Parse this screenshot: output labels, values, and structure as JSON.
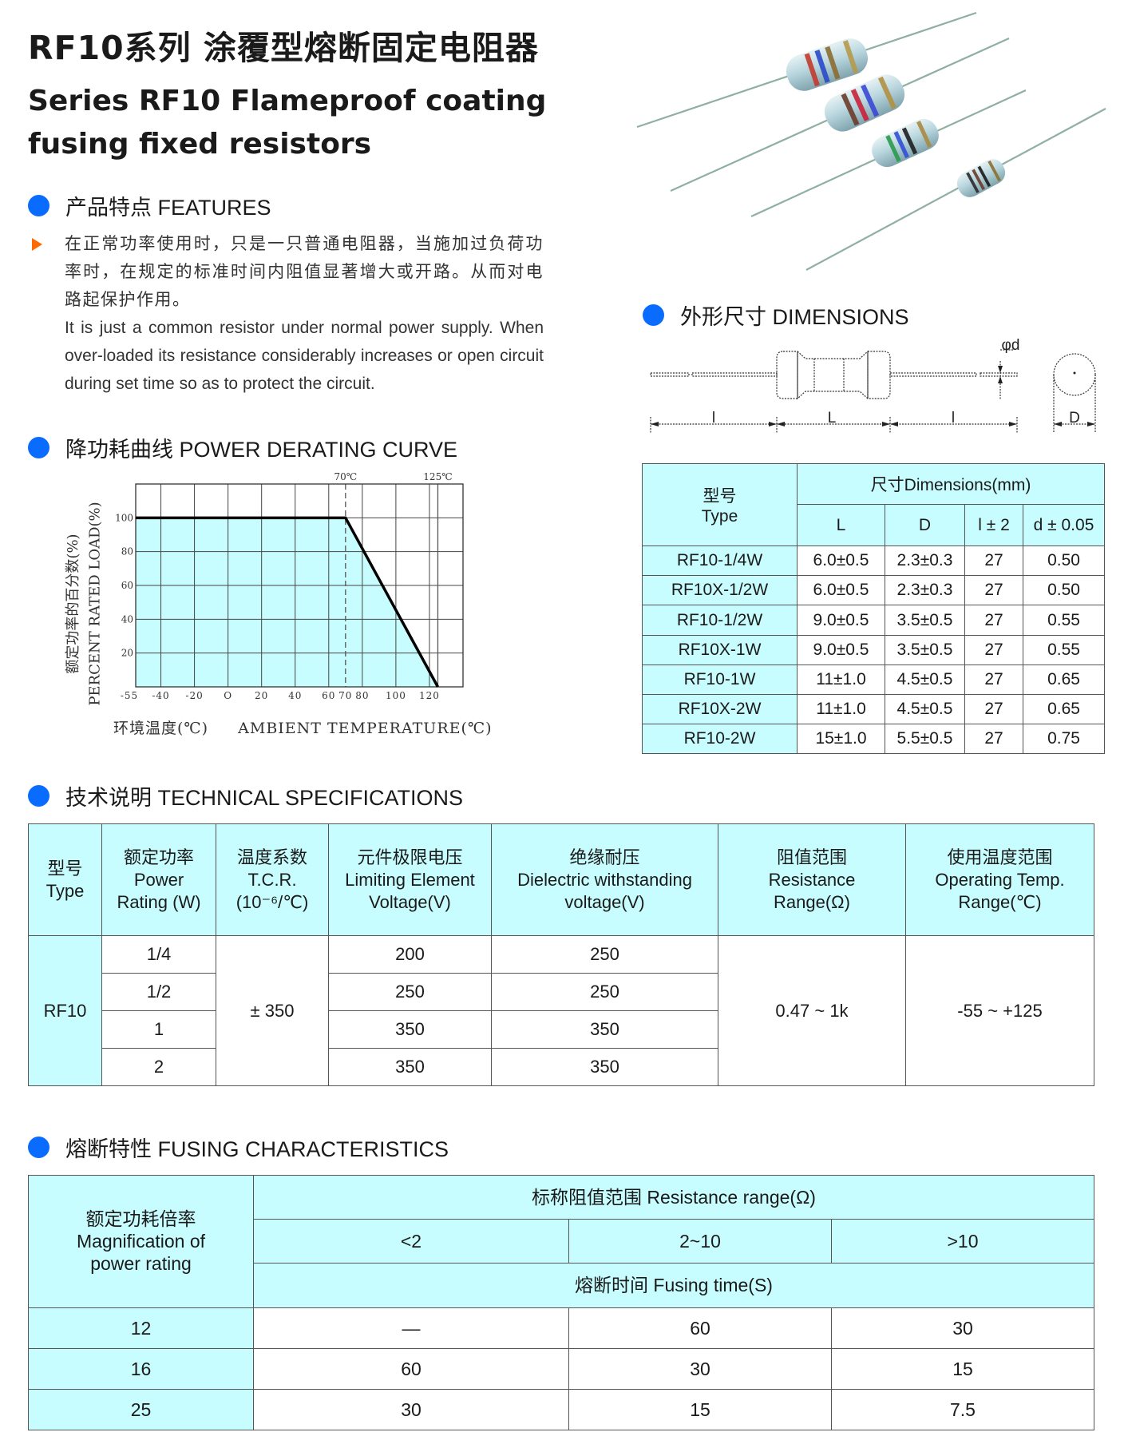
{
  "header": {
    "title": "RF10系列 涂覆型熔断固定电阻器",
    "subtitle_line1": "Series RF10 Flameproof coating",
    "subtitle_line2": "fusing fixed resistors"
  },
  "features": {
    "heading": "产品特点 FEATURES",
    "text_cn": "在正常功率使用时，只是一只普通电阻器，当施加过负荷功率时，在规定的标准时间内阻值显著增大或开路。从而对电路起保护作用。",
    "text_en": "It is just a common resistor under normal power supply. When over-loaded its resistance considerably increases or open circuit during set time so as to protect the circuit."
  },
  "derating": {
    "heading": "降功耗曲线 POWER DERATING CURVE"
  },
  "chart_data": {
    "type": "line",
    "ylabel_cn": "额定功率的百分数(%)",
    "ylabel": "PERCENT RATED LOAD(%)",
    "xlabel_cn": "环境温度(℃)",
    "xlabel": "AMBIENT TEMPERATURE(℃)",
    "xlim": [
      -55,
      140
    ],
    "ylim": [
      0,
      120
    ],
    "x_ticks": [
      {
        "value": -55,
        "label": "-55"
      },
      {
        "value": -40,
        "label": "-40"
      },
      {
        "value": -20,
        "label": "-20"
      },
      {
        "value": 0,
        "label": "O"
      },
      {
        "value": 20,
        "label": "20"
      },
      {
        "value": 40,
        "label": "40"
      },
      {
        "value": 60,
        "label": "60"
      },
      {
        "value": 70,
        "label": "70"
      },
      {
        "value": 80,
        "label": "80"
      },
      {
        "value": 100,
        "label": "100"
      },
      {
        "value": 120,
        "label": "120"
      }
    ],
    "y_ticks": [
      20,
      40,
      60,
      80,
      100
    ],
    "grid": true,
    "annotations": [
      {
        "x": 70,
        "label": "70℃",
        "style": "dashed"
      },
      {
        "x": 125,
        "label": "125℃",
        "style": "solid"
      }
    ],
    "series": [
      {
        "x": [
          -55,
          70,
          125
        ],
        "y": [
          100,
          100,
          0
        ]
      }
    ],
    "fill_color": "#c8fdff",
    "line_color": "#000000"
  },
  "dimensions": {
    "heading": "外形尺寸 DIMENSIONS",
    "drawing_labels": {
      "l_left": "l",
      "L": "L",
      "l_right": "l",
      "phi_d": "φd",
      "D": "D"
    },
    "table": {
      "type_cn": "型号",
      "type_en": "Type",
      "group_header": "尺寸Dimensions(mm)",
      "columns": [
        "L",
        "D",
        "l ± 2",
        "d ± 0.05"
      ],
      "rows": [
        [
          "RF10-1/4W",
          "6.0±0.5",
          "2.3±0.3",
          "27",
          "0.50"
        ],
        [
          "RF10X-1/2W",
          "6.0±0.5",
          "2.3±0.3",
          "27",
          "0.50"
        ],
        [
          "RF10-1/2W",
          "9.0±0.5",
          "3.5±0.5",
          "27",
          "0.55"
        ],
        [
          "RF10X-1W",
          "9.0±0.5",
          "3.5±0.5",
          "27",
          "0.55"
        ],
        [
          "RF10-1W",
          "11±1.0",
          "4.5±0.5",
          "27",
          "0.65"
        ],
        [
          "RF10X-2W",
          "11±1.0",
          "4.5±0.5",
          "27",
          "0.65"
        ],
        [
          "RF10-2W",
          "15±1.0",
          "5.5±0.5",
          "27",
          "0.75"
        ]
      ]
    }
  },
  "technical": {
    "heading": "技术说明 TECHNICAL SPECIFICATIONS",
    "headers": [
      [
        "型号",
        "Type"
      ],
      [
        "额定功率",
        "Power",
        "Rating (W)"
      ],
      [
        "温度系数",
        "T.C.R.",
        "(10⁻⁶/℃)"
      ],
      [
        "元件极限电压",
        "Limiting Element",
        "Voltage(V)"
      ],
      [
        "绝缘耐压",
        "Dielectric withstanding",
        "voltage(V)"
      ],
      [
        "阻值范围",
        "Resistance",
        "Range(Ω)"
      ],
      [
        "使用温度范围",
        "Operating Temp.",
        "Range(℃)"
      ]
    ],
    "type": "RF10",
    "tcr": "± 350",
    "resistance_range": "0.47 ~ 1k",
    "operating_temp": "-55 ~ +125",
    "rows": [
      {
        "power": "1/4",
        "limiting_voltage": "200",
        "dielectric": "250"
      },
      {
        "power": "1/2",
        "limiting_voltage": "250",
        "dielectric": "250"
      },
      {
        "power": "1",
        "limiting_voltage": "350",
        "dielectric": "350"
      },
      {
        "power": "2",
        "limiting_voltage": "350",
        "dielectric": "350"
      }
    ]
  },
  "fusing": {
    "heading": "熔断特性 FUSING CHARACTERISTICS",
    "mag_header": [
      "额定功耗倍率",
      "Magnification of",
      "power rating"
    ],
    "range_header": "标称阻值范围 Resistance range(Ω)",
    "ranges": [
      "<2",
      "2~10",
      ">10"
    ],
    "time_header": "熔断时间 Fusing time(S)",
    "rows": [
      [
        "12",
        "—",
        "60",
        "30"
      ],
      [
        "16",
        "60",
        "30",
        "15"
      ],
      [
        "25",
        "30",
        "15",
        "7.5"
      ]
    ]
  }
}
